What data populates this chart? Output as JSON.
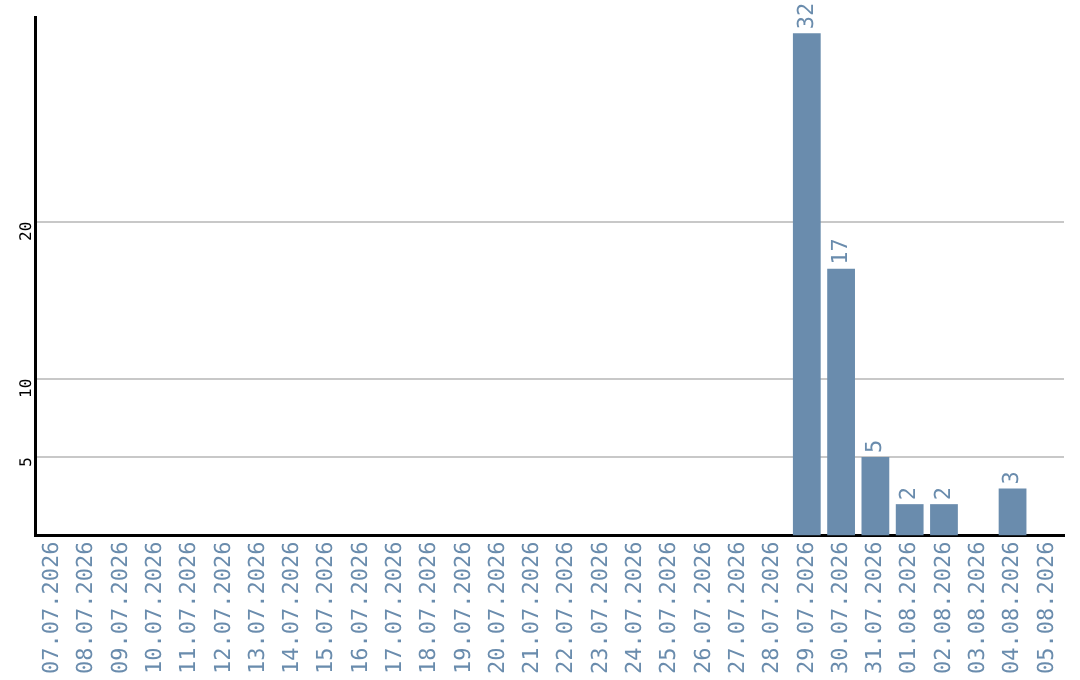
{
  "chart_data": {
    "type": "bar",
    "categories": [
      "07.07.2026",
      "08.07.2026",
      "09.07.2026",
      "10.07.2026",
      "11.07.2026",
      "12.07.2026",
      "13.07.2026",
      "14.07.2026",
      "15.07.2026",
      "16.07.2026",
      "17.07.2026",
      "18.07.2026",
      "19.07.2026",
      "20.07.2026",
      "21.07.2026",
      "22.07.2026",
      "23.07.2026",
      "24.07.2026",
      "25.07.2026",
      "26.07.2026",
      "27.07.2026",
      "28.07.2026",
      "29.07.2026",
      "30.07.2026",
      "31.07.2026",
      "01.08.2026",
      "02.08.2026",
      "03.08.2026",
      "04.08.2026",
      "05.08.2026"
    ],
    "values": [
      0,
      0,
      0,
      0,
      0,
      0,
      0,
      0,
      0,
      0,
      0,
      0,
      0,
      0,
      0,
      0,
      0,
      0,
      0,
      0,
      0,
      0,
      32,
      17,
      5,
      2,
      2,
      0,
      3,
      0
    ],
    "value_labels": [
      null,
      null,
      null,
      null,
      null,
      null,
      null,
      null,
      null,
      null,
      null,
      null,
      null,
      null,
      null,
      null,
      null,
      null,
      null,
      null,
      null,
      null,
      "32",
      "17",
      "5",
      "2",
      "2",
      null,
      "3",
      null
    ],
    "color": "#6a8cad",
    "ylim": [
      0,
      33
    ],
    "yticks": [
      5,
      10,
      20
    ],
    "grid": "y"
  }
}
